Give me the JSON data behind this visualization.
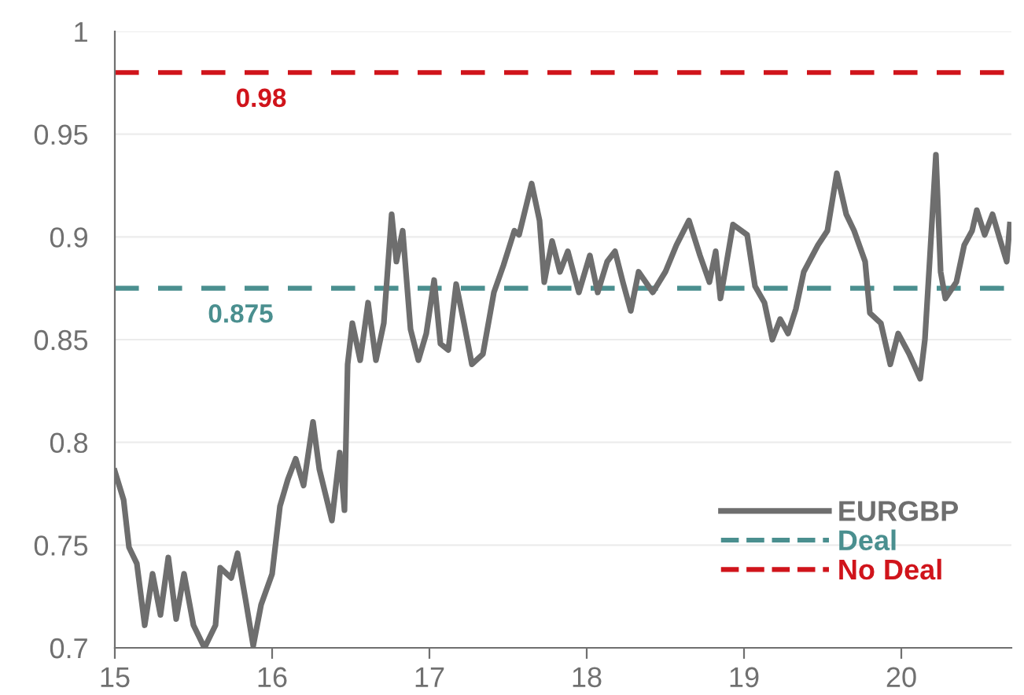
{
  "chart_data": {
    "type": "line",
    "xlim": [
      15,
      20.7
    ],
    "xticks": [
      15,
      16,
      17,
      18,
      19,
      20
    ],
    "ylim": [
      0.7,
      1
    ],
    "yticks": [
      0.7,
      0.75,
      0.8,
      0.85,
      0.9,
      0.95,
      1
    ],
    "grid": "y",
    "legend": "bottom right",
    "series": [
      {
        "name": "EURGBP",
        "color": "#6e6e6e",
        "line_style": "solid",
        "x": [
          15.0,
          15.056,
          15.09,
          15.14,
          15.19,
          15.24,
          15.29,
          15.34,
          15.39,
          15.44,
          15.5,
          15.57,
          15.64,
          15.67,
          15.74,
          15.78,
          15.83,
          15.88,
          15.93,
          16.0,
          16.05,
          16.1,
          16.15,
          16.2,
          16.26,
          16.3,
          16.38,
          16.43,
          16.46,
          16.48,
          16.51,
          16.56,
          16.61,
          16.66,
          16.71,
          16.76,
          16.79,
          16.83,
          16.88,
          16.93,
          16.98,
          17.03,
          17.07,
          17.12,
          17.17,
          17.22,
          17.27,
          17.34,
          17.41,
          17.47,
          17.54,
          17.57,
          17.65,
          17.7,
          17.73,
          17.78,
          17.83,
          17.88,
          17.95,
          18.02,
          18.07,
          18.13,
          18.18,
          18.23,
          18.28,
          18.33,
          18.42,
          18.5,
          18.57,
          18.65,
          18.72,
          18.78,
          18.82,
          18.85,
          18.93,
          19.02,
          19.07,
          19.13,
          19.18,
          19.23,
          19.28,
          19.33,
          19.38,
          19.47,
          19.53,
          19.59,
          19.65,
          19.7,
          19.77,
          19.8,
          19.87,
          19.93,
          19.98,
          20.05,
          20.12,
          20.15,
          20.18,
          20.22,
          20.25,
          20.28,
          20.35,
          20.4,
          20.45,
          20.48,
          20.53,
          20.58,
          20.63,
          20.67,
          20.69
        ],
        "values": [
          0.786,
          0.772,
          0.749,
          0.741,
          0.711,
          0.736,
          0.716,
          0.744,
          0.714,
          0.736,
          0.711,
          0.7,
          0.711,
          0.739,
          0.734,
          0.746,
          0.724,
          0.701,
          0.721,
          0.736,
          0.769,
          0.782,
          0.792,
          0.779,
          0.81,
          0.787,
          0.762,
          0.795,
          0.767,
          0.838,
          0.858,
          0.84,
          0.868,
          0.84,
          0.858,
          0.911,
          0.888,
          0.903,
          0.855,
          0.84,
          0.853,
          0.879,
          0.848,
          0.845,
          0.877,
          0.858,
          0.838,
          0.843,
          0.873,
          0.886,
          0.903,
          0.901,
          0.926,
          0.908,
          0.878,
          0.898,
          0.883,
          0.893,
          0.873,
          0.891,
          0.873,
          0.888,
          0.893,
          0.878,
          0.864,
          0.883,
          0.873,
          0.883,
          0.896,
          0.908,
          0.891,
          0.878,
          0.893,
          0.87,
          0.906,
          0.901,
          0.876,
          0.868,
          0.85,
          0.86,
          0.853,
          0.865,
          0.883,
          0.896,
          0.903,
          0.931,
          0.911,
          0.903,
          0.888,
          0.863,
          0.858,
          0.838,
          0.853,
          0.843,
          0.831,
          0.85,
          0.888,
          0.94,
          0.883,
          0.87,
          0.878,
          0.896,
          0.903,
          0.913,
          0.901,
          0.911,
          0.898,
          0.888,
          0.906
        ]
      },
      {
        "name": "Deal",
        "color": "#4a8f8f",
        "line_style": "dashed",
        "x": [
          15,
          20.7
        ],
        "values": [
          0.875,
          0.875
        ]
      },
      {
        "name": "No Deal",
        "color": "#d0141b",
        "line_style": "dashed",
        "x": [
          15,
          20.7
        ],
        "values": [
          0.98,
          0.98
        ]
      }
    ],
    "annotations": [
      {
        "text": "0.98",
        "x": 15.93,
        "y": 0.98
      },
      {
        "text": "0.875",
        "x": 15.8,
        "y": 0.875
      }
    ]
  }
}
